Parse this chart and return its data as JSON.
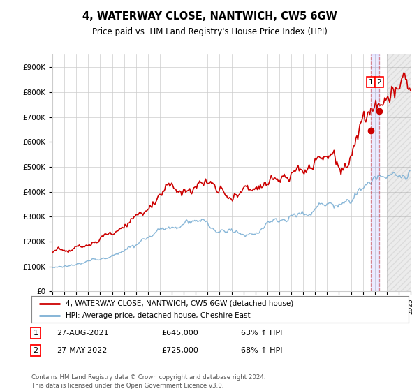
{
  "title": "4, WATERWAY CLOSE, NANTWICH, CW5 6GW",
  "subtitle": "Price paid vs. HM Land Registry's House Price Index (HPI)",
  "ylim": [
    0,
    950000
  ],
  "yticks": [
    0,
    100000,
    200000,
    300000,
    400000,
    500000,
    600000,
    700000,
    800000,
    900000
  ],
  "ytick_labels": [
    "£0",
    "£100K",
    "£200K",
    "£300K",
    "£400K",
    "£500K",
    "£600K",
    "£700K",
    "£800K",
    "£900K"
  ],
  "hpi_color": "#7bafd4",
  "price_color": "#cc0000",
  "grid_color": "#cccccc",
  "background_color": "#ffffff",
  "legend_label_price": "4, WATERWAY CLOSE, NANTWICH, CW5 6GW (detached house)",
  "legend_label_hpi": "HPI: Average price, detached house, Cheshire East",
  "transaction1_label": "1",
  "transaction1_date": "27-AUG-2021",
  "transaction1_price": "£645,000",
  "transaction1_hpi": "63% ↑ HPI",
  "transaction1_x": 2021.65,
  "transaction1_y": 645000,
  "transaction2_label": "2",
  "transaction2_date": "27-MAY-2022",
  "transaction2_price": "£725,000",
  "transaction2_hpi": "68% ↑ HPI",
  "transaction2_x": 2022.37,
  "transaction2_y": 725000,
  "footer": "Contains HM Land Registry data © Crown copyright and database right 2024.\nThis data is licensed under the Open Government Licence v3.0.",
  "hatch_start": 2023.0,
  "xlim_start": 1995,
  "xlim_end": 2025
}
